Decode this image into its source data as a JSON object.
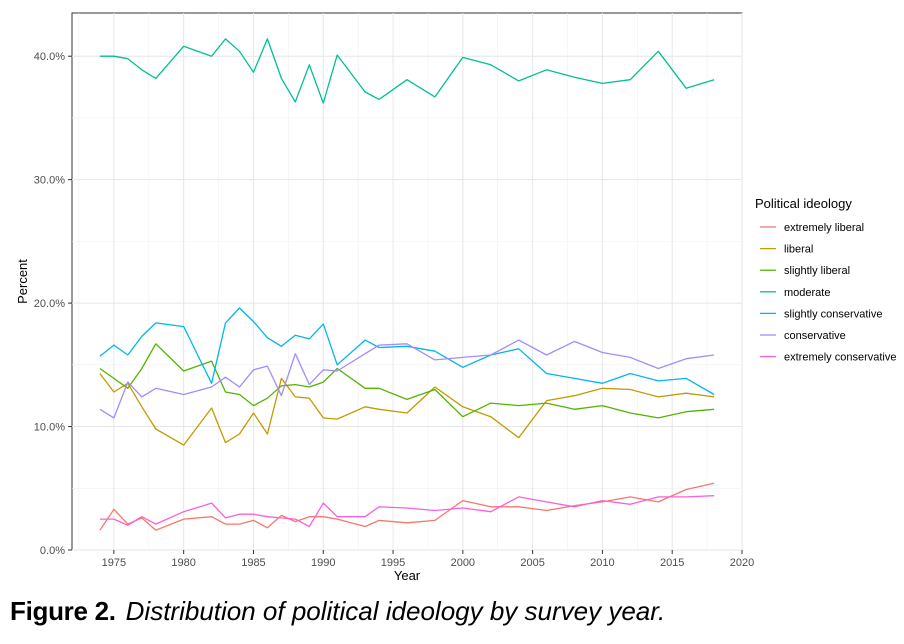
{
  "caption": {
    "label": "Figure 2.",
    "text": "Distribution of political ideology by survey year."
  },
  "chart_data": {
    "type": "line",
    "title": "",
    "xlabel": "Year",
    "ylabel": "Percent",
    "xlim": [
      1972,
      2020
    ],
    "ylim": [
      0,
      43.5
    ],
    "x_ticks": [
      1975,
      1980,
      1985,
      1990,
      1995,
      2000,
      2005,
      2010,
      2015,
      2020
    ],
    "y_ticks": [
      0,
      10,
      20,
      30,
      40
    ],
    "y_tick_labels": [
      "0.0%",
      "10.0%",
      "20.0%",
      "30.0%",
      "40.0%"
    ],
    "grid": true,
    "legend_title": "Political ideology",
    "legend_position": "right",
    "x": [
      1974,
      1975,
      1976,
      1977,
      1978,
      1980,
      1982,
      1983,
      1984,
      1985,
      1986,
      1987,
      1988,
      1989,
      1990,
      1991,
      1993,
      1994,
      1996,
      1998,
      2000,
      2002,
      2004,
      2006,
      2008,
      2010,
      2012,
      2014,
      2016,
      2018
    ],
    "series": [
      {
        "name": "extremely liberal",
        "color": "#F8766D",
        "values": [
          1.6,
          3.3,
          2.1,
          2.6,
          1.6,
          2.5,
          2.7,
          2.1,
          2.1,
          2.4,
          1.8,
          2.8,
          2.3,
          2.7,
          2.7,
          2.5,
          1.9,
          2.4,
          2.2,
          2.4,
          4.0,
          3.5,
          3.5,
          3.2,
          3.6,
          3.9,
          4.3,
          3.9,
          4.9,
          5.4
        ]
      },
      {
        "name": "liberal",
        "color": "#C49A00",
        "values": [
          14.3,
          12.8,
          13.5,
          11.6,
          9.8,
          8.5,
          11.5,
          8.7,
          9.4,
          11.1,
          9.4,
          13.9,
          12.4,
          12.3,
          10.7,
          10.6,
          11.6,
          11.4,
          11.1,
          13.2,
          11.6,
          10.8,
          9.1,
          12.1,
          12.5,
          13.1,
          13.0,
          12.4,
          12.7,
          12.4
        ]
      },
      {
        "name": "slightly liberal",
        "color": "#53B400",
        "values": [
          14.7,
          13.9,
          13.1,
          14.7,
          16.7,
          14.5,
          15.3,
          12.8,
          12.6,
          11.7,
          12.3,
          13.3,
          13.4,
          13.2,
          13.6,
          14.7,
          13.1,
          13.1,
          12.2,
          13.0,
          10.8,
          11.9,
          11.7,
          11.9,
          11.4,
          11.7,
          11.1,
          10.7,
          11.2,
          11.4
        ]
      },
      {
        "name": "moderate",
        "color": "#00C094",
        "values": [
          40.0,
          40.0,
          39.8,
          38.9,
          38.2,
          40.8,
          40.0,
          41.4,
          40.4,
          38.7,
          41.4,
          38.2,
          36.3,
          39.3,
          36.2,
          40.1,
          37.1,
          36.5,
          38.1,
          36.7,
          39.9,
          39.3,
          38.0,
          38.9,
          38.3,
          37.8,
          38.1,
          40.4,
          37.4,
          38.1
        ]
      },
      {
        "name": "slightly conservative",
        "color": "#00B6EB",
        "values": [
          15.7,
          16.6,
          15.8,
          17.3,
          18.4,
          18.1,
          13.5,
          18.4,
          19.6,
          18.5,
          17.2,
          16.5,
          17.4,
          17.1,
          18.3,
          15.0,
          17.0,
          16.4,
          16.5,
          16.1,
          14.8,
          15.8,
          16.3,
          14.3,
          13.9,
          13.5,
          14.3,
          13.7,
          13.9,
          12.6
        ]
      },
      {
        "name": "conservative",
        "color": "#A58AFF",
        "values": [
          11.4,
          10.7,
          13.6,
          12.4,
          13.1,
          12.6,
          13.2,
          14.0,
          13.2,
          14.6,
          14.9,
          12.5,
          15.9,
          13.4,
          14.6,
          14.5,
          15.9,
          16.6,
          16.7,
          15.4,
          15.6,
          15.8,
          17.0,
          15.8,
          16.9,
          16.0,
          15.6,
          14.7,
          15.5,
          15.8
        ]
      },
      {
        "name": "extremely conservative",
        "color": "#FB61D7",
        "values": [
          2.5,
          2.5,
          2.0,
          2.7,
          2.1,
          3.1,
          3.8,
          2.6,
          2.9,
          2.9,
          2.7,
          2.6,
          2.5,
          1.9,
          3.8,
          2.7,
          2.7,
          3.5,
          3.4,
          3.2,
          3.4,
          3.1,
          4.3,
          3.9,
          3.5,
          4.0,
          3.7,
          4.3,
          4.3,
          4.4
        ]
      }
    ]
  }
}
